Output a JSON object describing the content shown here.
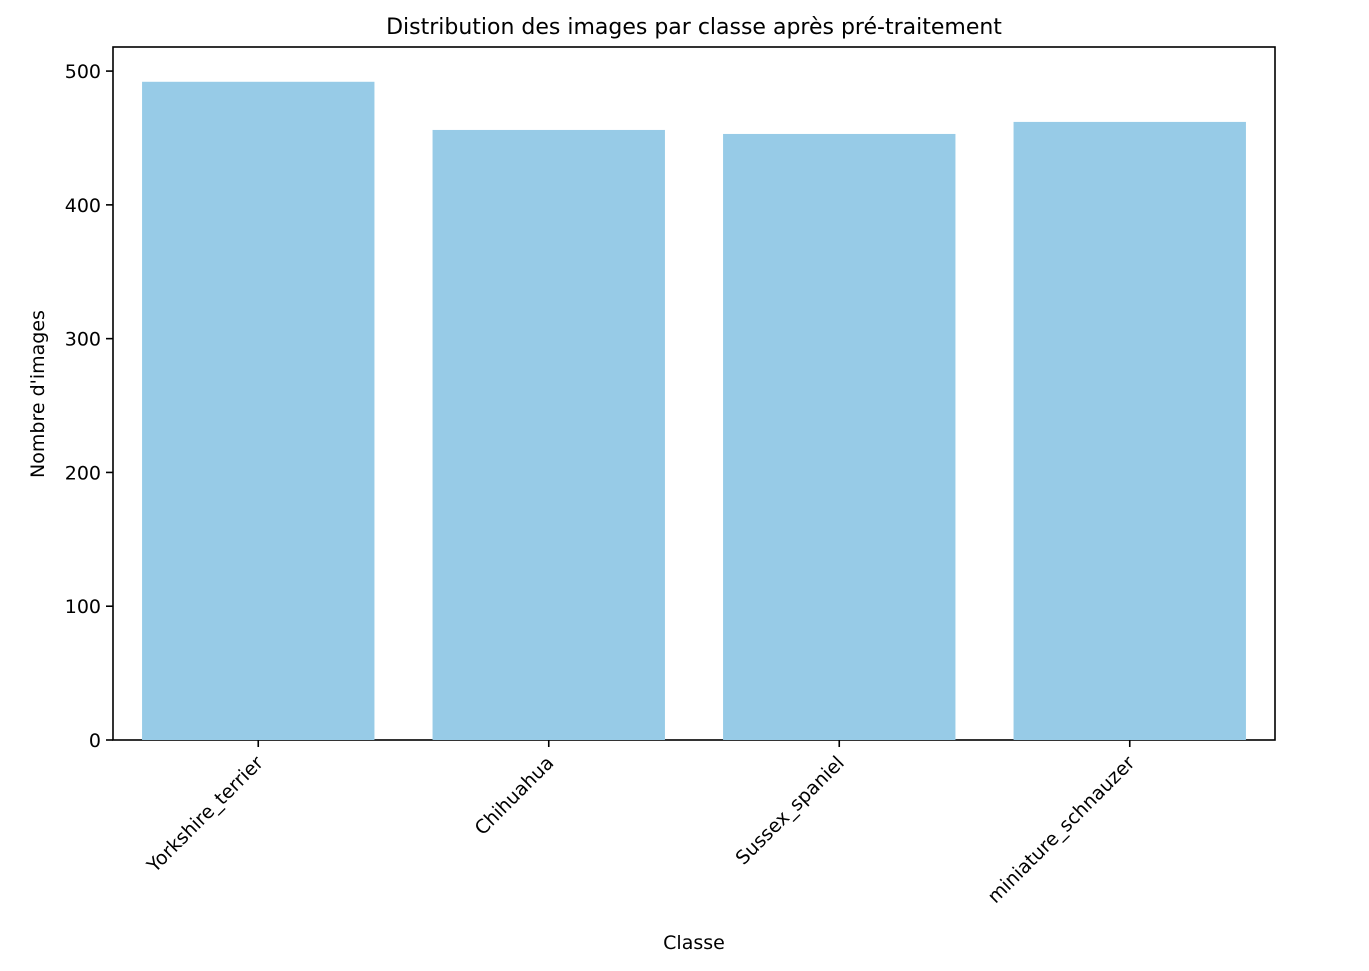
{
  "chart_data": {
    "type": "bar",
    "title": "Distribution des images par classe après pré-traitement",
    "xlabel": "Classe",
    "ylabel": "Nombre d'images",
    "categories": [
      "Yorkshire_terrier",
      "Chihuahua",
      "Sussex_spaniel",
      "miniature_schnauzer"
    ],
    "values": [
      492,
      456,
      453,
      462
    ],
    "ylim": [
      0,
      518
    ],
    "yticks": [
      0,
      100,
      200,
      300,
      400,
      500
    ],
    "grid": false,
    "legend": "none",
    "colors": {
      "bar": "#97cbe7",
      "axes": "#000000",
      "background": "#ffffff"
    }
  }
}
